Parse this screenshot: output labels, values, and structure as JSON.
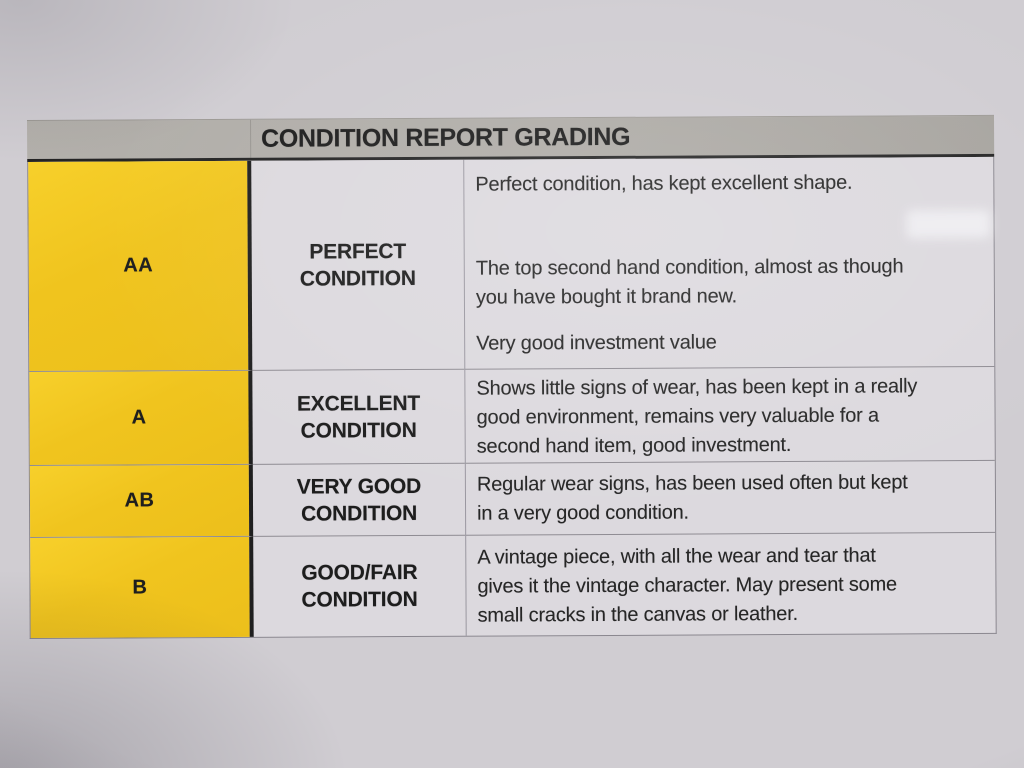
{
  "document": {
    "title": "CONDITION REPORT GRADING",
    "rows": [
      {
        "grade": "AA",
        "label": "PERFECT\nCONDITION",
        "paragraphs": [
          "Perfect condition, has kept excellent shape.",
          "The top second hand condition, almost as though\nyou have bought it brand new.",
          "Very good investment value"
        ]
      },
      {
        "grade": "A",
        "label": "EXCELLENT\nCONDITION",
        "paragraphs": [
          "Shows little signs of wear, has been kept in a really\ngood environment, remains very valuable for a\nsecond hand item, good investment."
        ]
      },
      {
        "grade": "AB",
        "label": "VERY GOOD\nCONDITION",
        "paragraphs": [
          "Regular wear signs, has been used often but kept\nin a very good condition."
        ]
      },
      {
        "grade": "B",
        "label": "GOOD/FAIR\nCONDITION",
        "paragraphs": [
          "A vintage piece, with all the wear and tear that\ngives it the vintage character. May present some\nsmall cracks in the canvas or leather."
        ]
      }
    ]
  },
  "colors": {
    "paper": "#d0cdd2",
    "cell-bg": "#dcd9de",
    "header-bg": "#aeaba6",
    "grade-bg": "#f0c41e",
    "ink": "#232323",
    "line-thin": "#8f8c93",
    "line-thick": "#242424"
  }
}
